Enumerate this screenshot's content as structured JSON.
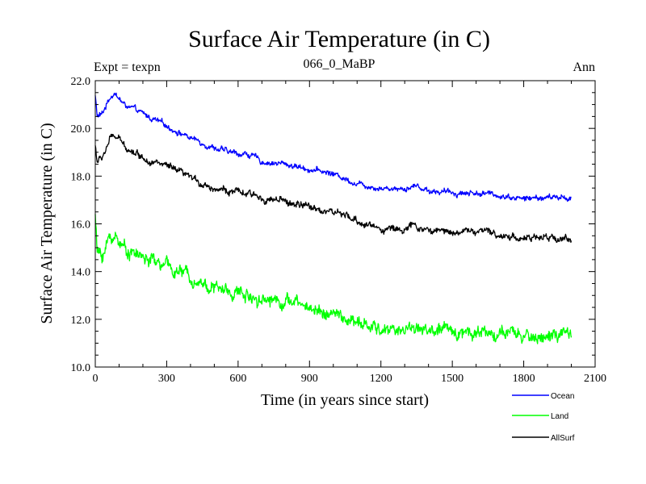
{
  "chart_data": {
    "type": "line",
    "title": "Surface Air Temperature (in C)",
    "subtitle_left": "Expt = texpn",
    "subtitle_center": "066_0_MaBP",
    "subtitle_right": "Ann",
    "xlabel": "Time (in years since start)",
    "ylabel": "Surface Air Temperature (in C)",
    "xlim": [
      0,
      2100
    ],
    "ylim": [
      10.0,
      22.0
    ],
    "xticks": [
      "0",
      "300",
      "600",
      "900",
      "1200",
      "1500",
      "1800",
      "2100"
    ],
    "yticks": [
      "10.0",
      "12.0",
      "14.0",
      "16.0",
      "18.0",
      "20.0",
      "22.0"
    ],
    "legend_position": "bottom-right, below plot",
    "series": [
      {
        "name": "Ocean",
        "color": "#0000ff",
        "noise": 0.12,
        "knots": [
          [
            0,
            21.4
          ],
          [
            8,
            20.5
          ],
          [
            30,
            20.6
          ],
          [
            60,
            21.3
          ],
          [
            80,
            21.5
          ],
          [
            120,
            21.0
          ],
          [
            200,
            20.6
          ],
          [
            300,
            20.1
          ],
          [
            400,
            19.6
          ],
          [
            500,
            19.2
          ],
          [
            560,
            19.0
          ],
          [
            650,
            18.9
          ],
          [
            700,
            18.6
          ],
          [
            800,
            18.5
          ],
          [
            850,
            18.4
          ],
          [
            900,
            18.3
          ],
          [
            1000,
            18.1
          ],
          [
            1100,
            17.7
          ],
          [
            1200,
            17.5
          ],
          [
            1300,
            17.5
          ],
          [
            1350,
            17.6
          ],
          [
            1400,
            17.4
          ],
          [
            1500,
            17.3
          ],
          [
            1600,
            17.3
          ],
          [
            1700,
            17.2
          ],
          [
            1800,
            17.05
          ],
          [
            1900,
            17.1
          ],
          [
            2000,
            17.1
          ]
        ]
      },
      {
        "name": "Land",
        "color": "#00ff00",
        "noise": 0.28,
        "knots": [
          [
            0,
            16.4
          ],
          [
            8,
            14.8
          ],
          [
            30,
            14.7
          ],
          [
            60,
            15.4
          ],
          [
            90,
            15.5
          ],
          [
            120,
            15.0
          ],
          [
            200,
            14.6
          ],
          [
            300,
            14.2
          ],
          [
            400,
            13.8
          ],
          [
            500,
            13.3
          ],
          [
            600,
            13.1
          ],
          [
            700,
            12.9
          ],
          [
            800,
            12.8
          ],
          [
            900,
            12.5
          ],
          [
            1000,
            12.2
          ],
          [
            1100,
            11.8
          ],
          [
            1200,
            11.55
          ],
          [
            1300,
            11.6
          ],
          [
            1350,
            11.7
          ],
          [
            1400,
            11.5
          ],
          [
            1500,
            11.5
          ],
          [
            1600,
            11.5
          ],
          [
            1700,
            11.4
          ],
          [
            1800,
            11.25
          ],
          [
            1900,
            11.3
          ],
          [
            2000,
            11.3
          ]
        ]
      },
      {
        "name": "AllSurf",
        "color": "#000000",
        "noise": 0.15,
        "knots": [
          [
            0,
            19.3
          ],
          [
            8,
            18.6
          ],
          [
            30,
            18.8
          ],
          [
            60,
            19.5
          ],
          [
            80,
            19.7
          ],
          [
            120,
            19.3
          ],
          [
            200,
            18.8
          ],
          [
            300,
            18.4
          ],
          [
            400,
            17.9
          ],
          [
            500,
            17.5
          ],
          [
            600,
            17.3
          ],
          [
            700,
            17.1
          ],
          [
            800,
            16.9
          ],
          [
            900,
            16.7
          ],
          [
            1000,
            16.5
          ],
          [
            1100,
            16.1
          ],
          [
            1200,
            15.8
          ],
          [
            1300,
            15.8
          ],
          [
            1350,
            15.9
          ],
          [
            1400,
            15.7
          ],
          [
            1500,
            15.7
          ],
          [
            1600,
            15.7
          ],
          [
            1700,
            15.55
          ],
          [
            1800,
            15.4
          ],
          [
            1900,
            15.4
          ],
          [
            2000,
            15.4
          ]
        ]
      }
    ]
  }
}
